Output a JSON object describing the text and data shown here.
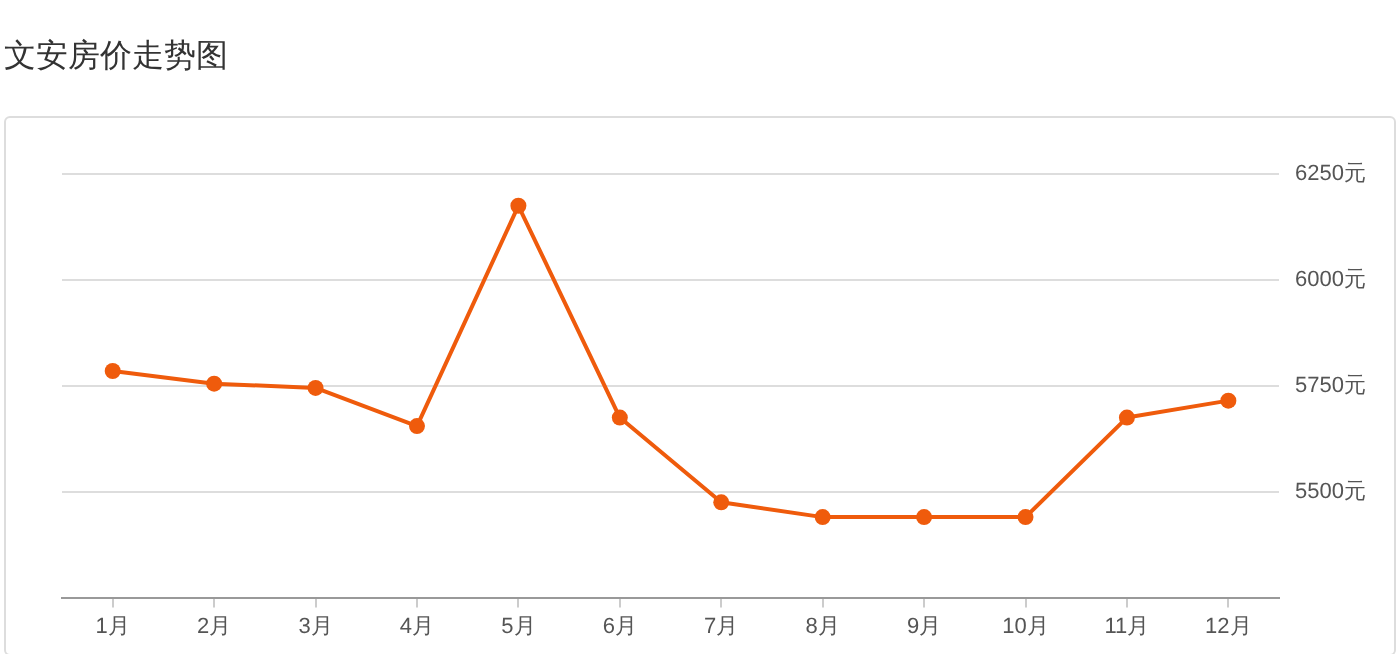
{
  "chart_data": {
    "type": "line",
    "title": "文安房价走势图",
    "categories": [
      "1月",
      "2月",
      "3月",
      "4月",
      "5月",
      "6月",
      "7月",
      "8月",
      "9月",
      "10月",
      "11月",
      "12月"
    ],
    "series": [
      {
        "color": "#ef5b0c",
        "values": [
          5785,
          5755,
          5745,
          5655,
          6175,
          5675,
          5475,
          5440,
          5440,
          5440,
          5675,
          5715
        ]
      }
    ],
    "ylim": [
      5250,
      6250
    ],
    "yticks": [
      {
        "value": 5500,
        "label": "5500元"
      },
      {
        "value": 5750,
        "label": "5750元"
      },
      {
        "value": 6000,
        "label": "6000元"
      },
      {
        "value": 6250,
        "label": "6250元"
      }
    ],
    "grid": "y",
    "marker": "circle"
  }
}
